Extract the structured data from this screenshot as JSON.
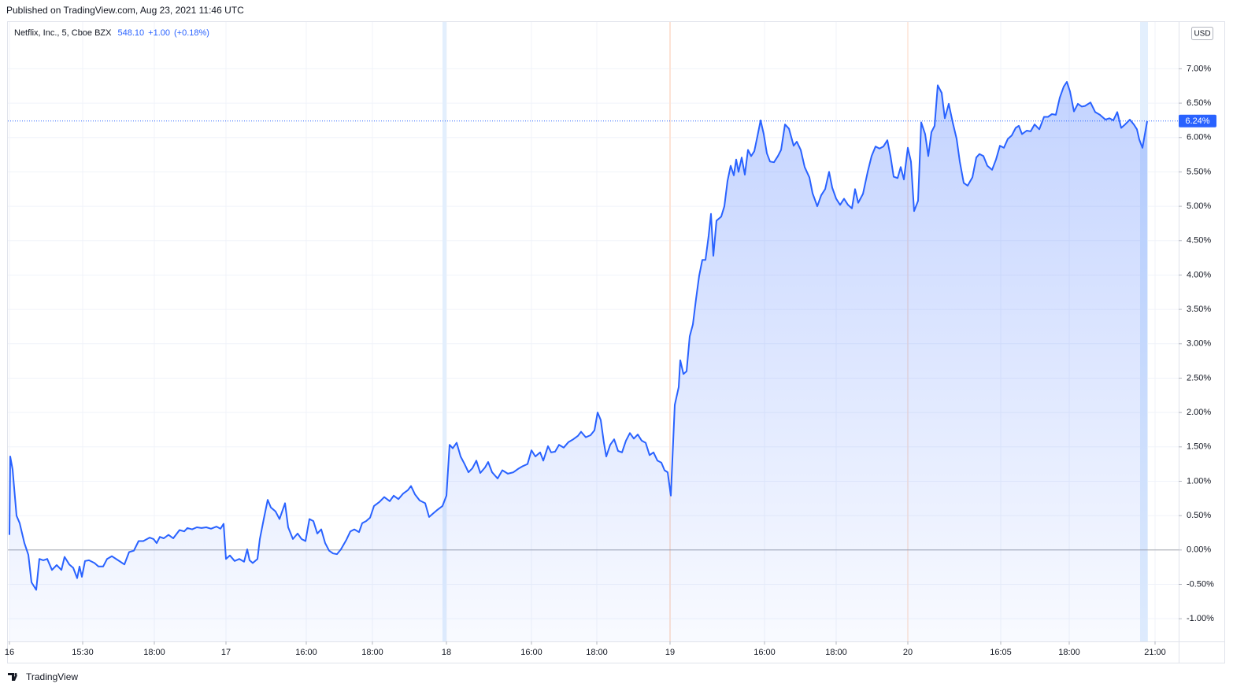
{
  "header": "Published on TradingView.com, Aug 23, 2021 11:46 UTC",
  "footer": "TradingView",
  "chart_data": {
    "type": "area",
    "legend_values": [
      "548.10",
      "+1.00",
      "(+0.18%)"
    ],
    "currency": "USD",
    "last_value_label": "6.24%",
    "series": [
      {
        "name": "Netflix, Inc., 5, Cboe BZX",
        "color": "#2962ff",
        "values": [
          0.22,
          1.36,
          1.17,
          0.5,
          0.39,
          0.1,
          -0.07,
          -0.47,
          -0.58,
          -0.13,
          -0.15,
          -0.13,
          -0.29,
          -0.22,
          -0.29,
          -0.1,
          -0.21,
          -0.26,
          -0.41,
          -0.24,
          -0.39,
          -0.16,
          -0.15,
          -0.19,
          -0.24,
          -0.24,
          -0.13,
          -0.09,
          -0.15,
          -0.21,
          -0.03,
          -0.01,
          0.13,
          0.13,
          0.18,
          0.16,
          0.1,
          0.19,
          0.17,
          0.22,
          0.17,
          0.29,
          0.27,
          0.32,
          0.3,
          0.33,
          0.32,
          0.33,
          0.31,
          0.34,
          0.31,
          0.38,
          -0.13,
          -0.08,
          -0.16,
          -0.13,
          -0.17,
          0.01,
          -0.15,
          -0.19,
          -0.13,
          0.16,
          0.45,
          0.73,
          0.62,
          0.56,
          0.45,
          0.68,
          0.33,
          0.16,
          0.24,
          0.16,
          0.13,
          0.45,
          0.42,
          0.24,
          0.3,
          0.1,
          -0.01,
          -0.05,
          -0.06,
          0.01,
          0.15,
          0.27,
          0.3,
          0.26,
          0.39,
          0.42,
          0.47,
          0.64,
          0.7,
          0.77,
          0.71,
          0.79,
          0.74,
          0.82,
          0.87,
          0.93,
          0.81,
          0.72,
          0.68,
          0.48,
          0.53,
          0.58,
          0.64,
          0.79,
          1.53,
          1.48,
          1.56,
          1.36,
          1.25,
          1.13,
          1.19,
          1.3,
          1.12,
          1.2,
          1.28,
          1.13,
          1.04,
          1.16,
          1.11,
          1.13,
          1.18,
          1.22,
          1.25,
          1.45,
          1.36,
          1.42,
          1.3,
          1.51,
          1.42,
          1.43,
          1.53,
          1.49,
          1.57,
          1.61,
          1.66,
          1.72,
          1.64,
          1.67,
          1.74,
          2.0,
          1.89,
          1.56,
          1.36,
          1.53,
          1.61,
          1.44,
          1.42,
          1.59,
          1.7,
          1.62,
          1.68,
          1.59,
          1.56,
          1.38,
          1.42,
          1.3,
          1.27,
          1.16,
          1.13,
          0.79,
          2.11,
          2.37,
          2.76,
          2.56,
          2.6,
          3.11,
          3.28,
          3.65,
          3.99,
          4.22,
          4.22,
          4.57,
          4.89,
          4.28,
          4.79,
          4.85,
          5.0,
          5.37,
          5.59,
          5.45,
          5.68,
          5.5,
          5.71,
          5.46,
          5.82,
          5.73,
          5.8,
          6.02,
          6.25,
          6.05,
          5.77,
          5.65,
          5.64,
          5.73,
          5.82,
          6.19,
          6.13,
          5.88,
          5.94,
          5.82,
          5.57,
          5.42,
          5.19,
          5.0,
          5.16,
          5.25,
          5.5,
          5.27,
          5.11,
          5.02,
          5.11,
          5.02,
          4.97,
          5.25,
          5.05,
          5.18,
          5.5,
          5.73,
          5.87,
          5.84,
          5.87,
          5.96,
          5.73,
          5.43,
          5.41,
          5.57,
          5.39,
          5.85,
          5.65,
          4.93,
          5.08,
          6.22,
          6.05,
          5.73,
          6.08,
          6.17,
          6.76,
          6.65,
          6.28,
          6.49,
          6.22,
          5.98,
          5.65,
          5.34,
          5.3,
          5.42,
          5.71,
          5.76,
          5.73,
          5.59,
          5.53,
          5.68,
          5.88,
          5.85,
          5.98,
          6.03,
          6.14,
          6.17,
          6.05,
          6.1,
          6.09,
          6.19,
          6.12,
          6.3,
          6.3,
          6.34,
          6.33,
          6.58,
          6.74,
          6.81,
          6.67,
          6.38,
          6.49,
          6.45,
          6.46,
          6.51,
          6.37,
          6.33,
          6.26,
          6.28,
          6.25,
          6.37,
          6.14,
          6.19,
          6.26,
          6.19,
          6.12,
          5.97,
          5.85,
          6.24
        ]
      }
    ],
    "x": [
      2,
      3,
      6,
      11,
      15,
      21,
      26,
      30,
      36,
      40,
      45,
      50,
      56,
      62,
      68,
      72,
      78,
      83,
      88,
      91,
      94,
      98,
      103,
      110,
      115,
      121,
      126,
      132,
      140,
      148,
      154,
      160,
      166,
      172,
      180,
      185,
      189,
      193,
      198,
      204,
      210,
      218,
      224,
      228,
      234,
      240,
      246,
      252,
      258,
      265,
      270,
      274,
      277,
      282,
      288,
      294,
      300,
      304,
      307,
      311,
      317,
      320,
      325,
      330,
      334,
      340,
      345,
      352,
      356,
      362,
      368,
      373,
      378,
      383,
      388,
      393,
      398,
      403,
      408,
      413,
      418,
      423,
      430,
      435,
      440,
      446,
      450,
      455,
      460,
      465,
      472,
      478,
      485,
      490,
      496,
      502,
      508,
      512,
      517,
      523,
      530,
      535,
      540,
      545,
      552,
      557,
      561,
      565,
      570,
      575,
      580,
      585,
      590,
      595,
      600,
      606,
      610,
      615,
      622,
      628,
      635,
      642,
      648,
      654,
      660,
      665,
      670,
      676,
      680,
      686,
      690,
      695,
      700,
      706,
      712,
      718,
      724,
      728,
      734,
      740,
      745,
      749,
      753,
      757,
      760,
      765,
      770,
      775,
      780,
      785,
      790,
      795,
      800,
      805,
      810,
      815,
      820,
      825,
      830,
      834,
      838,
      842,
      847,
      852,
      854,
      858,
      862,
      866,
      870,
      874,
      878,
      882,
      886,
      890,
      893,
      896,
      900,
      906,
      910,
      914,
      918,
      922,
      925,
      928,
      932,
      936,
      940,
      944,
      948,
      952,
      956,
      960,
      964,
      968,
      973,
      978,
      982,
      987,
      992,
      998,
      1002,
      1007,
      1012,
      1018,
      1022,
      1028,
      1033,
      1038,
      1043,
      1047,
      1052,
      1057,
      1062,
      1067,
      1072,
      1076,
      1080,
      1086,
      1092,
      1097,
      1102,
      1107,
      1112,
      1117,
      1121,
      1125,
      1130,
      1134,
      1138,
      1143,
      1147,
      1151,
      1156,
      1160,
      1165,
      1169,
      1173,
      1177,
      1181,
      1186,
      1190,
      1195,
      1200,
      1205,
      1209,
      1214,
      1219,
      1225,
      1230,
      1234,
      1239,
      1244,
      1250,
      1255,
      1260,
      1265,
      1270,
      1275,
      1280,
      1284,
      1288,
      1294,
      1299,
      1304,
      1310,
      1316,
      1321,
      1326,
      1331,
      1336,
      1341,
      1345,
      1349,
      1354,
      1359,
      1364,
      1368,
      1375,
      1381,
      1387,
      1394,
      1399,
      1404,
      1409,
      1414,
      1419,
      1425,
      1430,
      1434,
      1437,
      1441,
      1447
    ],
    "xlim": [
      0,
      1487
    ],
    "xticks": [
      {
        "value": 2,
        "label": "16"
      },
      {
        "value": 95,
        "label": "15:30"
      },
      {
        "value": 186,
        "label": "18:00"
      },
      {
        "value": 277,
        "label": "17"
      },
      {
        "value": 379,
        "label": "16:00"
      },
      {
        "value": 463,
        "label": "18:00"
      },
      {
        "value": 557,
        "label": "18"
      },
      {
        "value": 665,
        "label": "16:00"
      },
      {
        "value": 748,
        "label": "18:00"
      },
      {
        "value": 841,
        "label": "19"
      },
      {
        "value": 961,
        "label": "16:00"
      },
      {
        "value": 1052,
        "label": "18:00"
      },
      {
        "value": 1143,
        "label": "20"
      },
      {
        "value": 1261,
        "label": "16:05"
      },
      {
        "value": 1348,
        "label": "18:00"
      },
      {
        "value": 1457,
        "label": "21:00"
      }
    ],
    "ylim": [
      -1.33,
      7.68
    ],
    "yticks": [
      {
        "value": -1,
        "label": "-1.00%"
      },
      {
        "value": -0.5,
        "label": "-0.50%"
      },
      {
        "value": 0,
        "label": "0.00%"
      },
      {
        "value": 0.5,
        "label": "0.50%"
      },
      {
        "value": 1,
        "label": "1.00%"
      },
      {
        "value": 1.5,
        "label": "1.50%"
      },
      {
        "value": 2,
        "label": "2.00%"
      },
      {
        "value": 2.5,
        "label": "2.50%"
      },
      {
        "value": 3,
        "label": "3.00%"
      },
      {
        "value": 3.5,
        "label": "3.50%"
      },
      {
        "value": 4,
        "label": "4.00%"
      },
      {
        "value": 4.5,
        "label": "4.50%"
      },
      {
        "value": 5,
        "label": "5.00%"
      },
      {
        "value": 5.5,
        "label": "5.50%"
      },
      {
        "value": 6,
        "label": "6.00%"
      },
      {
        "value": 6.5,
        "label": "6.50%"
      },
      {
        "value": 7,
        "label": "7.00%"
      }
    ],
    "grid": true
  }
}
